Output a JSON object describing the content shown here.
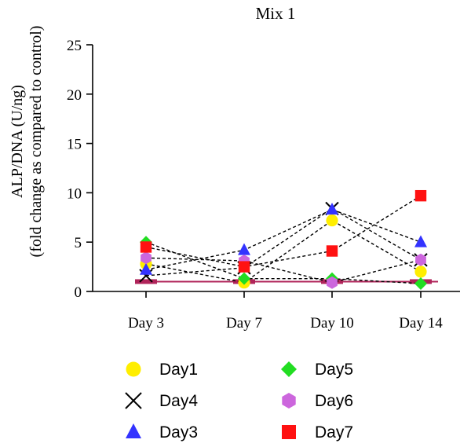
{
  "chart_data": {
    "type": "scatter",
    "title": "Mix 1",
    "ylabel_line1": "ALP/DNA (U/ng)",
    "ylabel_line2": "(fold change as compared  to control)",
    "xlabel": "",
    "categories": [
      "Day 3",
      "Day 7",
      "Day 10",
      "Day 14"
    ],
    "ylim": [
      0,
      25
    ],
    "yticks": [
      "0",
      "5",
      "10",
      "15",
      "20",
      "25"
    ],
    "control_value": 1,
    "control_color": "#b0245a",
    "series": [
      {
        "name": "Day1",
        "marker": "circle",
        "color": "#ffee00",
        "values": [
          2.8,
          0.9,
          7.2,
          2.0
        ]
      },
      {
        "name": "Day4",
        "marker": "x",
        "color": "#000000",
        "values": [
          1.6,
          2.4,
          8.4,
          3.2
        ]
      },
      {
        "name": "Day3",
        "marker": "triangle",
        "color": "#3333ff",
        "values": [
          2.2,
          4.2,
          8.3,
          5.0
        ]
      },
      {
        "name": "Day5",
        "marker": "diamond",
        "color": "#22dd22",
        "values": [
          5.0,
          1.3,
          1.3,
          0.8
        ]
      },
      {
        "name": "Day6",
        "marker": "hexagon",
        "color": "#cc66dd",
        "values": [
          3.4,
          3.1,
          0.9,
          3.2
        ]
      },
      {
        "name": "Day7",
        "marker": "square",
        "color": "#ff1111",
        "values": [
          4.5,
          2.5,
          4.1,
          9.7
        ]
      }
    ],
    "legend_position": "bottom",
    "grid": false
  }
}
